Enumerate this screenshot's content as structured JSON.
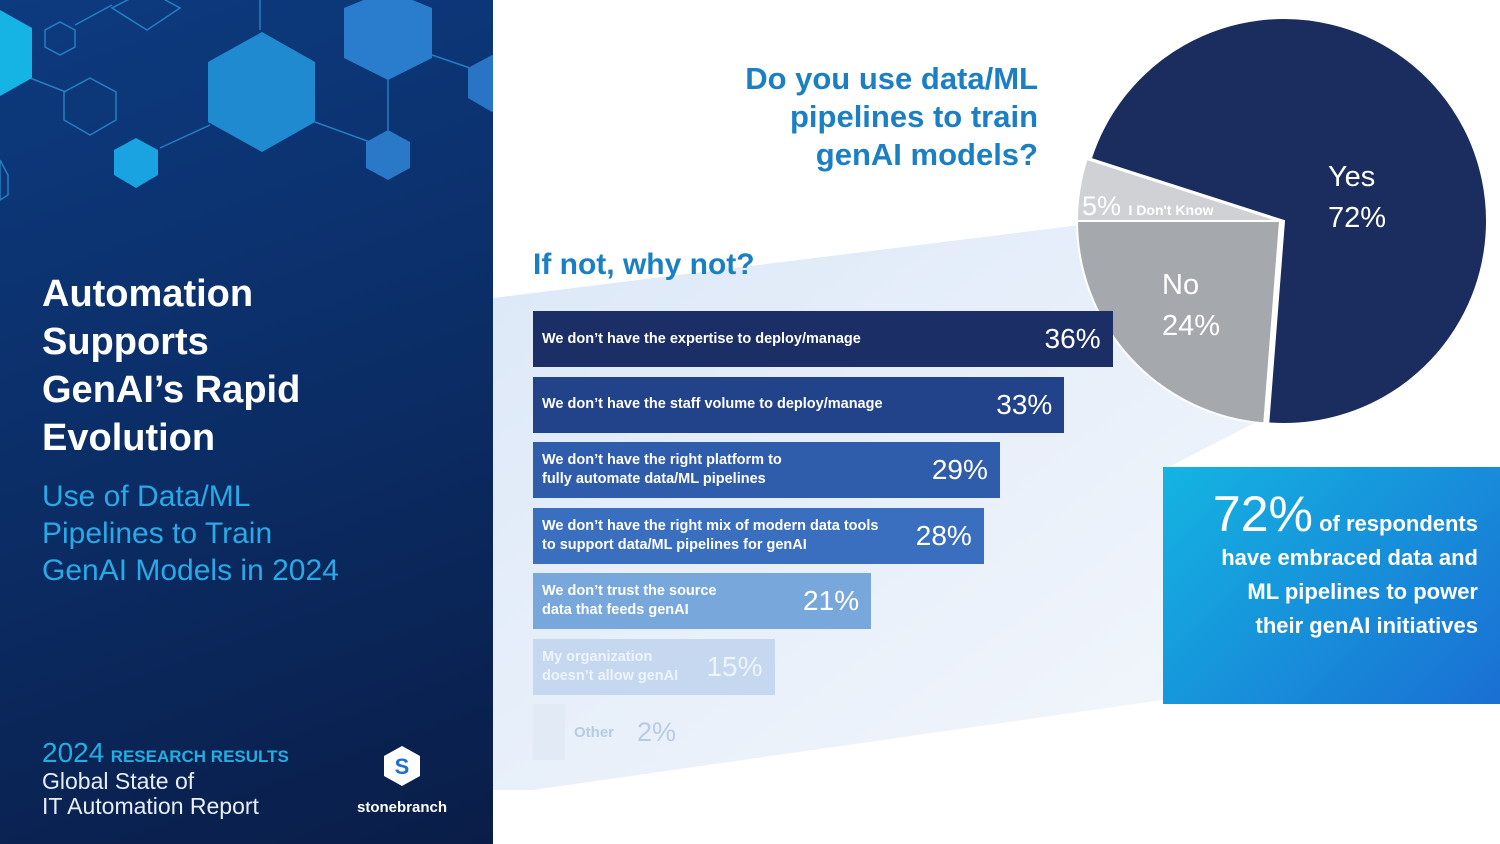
{
  "left_panel": {
    "title_lines": [
      "Automation",
      "Supports",
      "GenAI’s Rapid",
      "Evolution"
    ],
    "subtitle_lines": [
      "Use of Data/ML",
      "Pipelines to Train",
      "GenAI Models in 2024"
    ],
    "report_year": "2024",
    "report_tag": "RESEARCH RESULTS",
    "report_lines": [
      "Global State of",
      "IT Automation Report"
    ],
    "brand": "stonebranch",
    "logo_letter": "S"
  },
  "pie_question_lines": [
    "Do you use data/ML",
    "pipelines to train",
    "genAI models?"
  ],
  "bars_title": "If not, why not?",
  "callout": {
    "big": "72%",
    "rest_first": " of respondents",
    "lines": [
      "have embraced data and",
      "ML pipelines to power",
      "their genAI initiatives"
    ]
  },
  "colors": {
    "bars": [
      "#1b2f66",
      "#22428a",
      "#2f5cab",
      "#3a6ebf",
      "#78a7dc",
      "#c5d8f0",
      "#e2eaf6"
    ],
    "yes": "#1b2d5e",
    "no": "#a5a8ad",
    "dk": "#cfd1d4"
  },
  "chart_data": [
    {
      "type": "pie",
      "title": "Do you use data/ML pipelines to train genAI models?",
      "slices": [
        {
          "label": "Yes",
          "value": 72,
          "text": "72%"
        },
        {
          "label": "No",
          "value": 24,
          "text": "24%"
        },
        {
          "label": "I Don't Know",
          "value": 5,
          "text": "5%"
        }
      ]
    },
    {
      "type": "bar",
      "title": "If not, why not?",
      "categories": [
        [
          "We don’t have the expertise to deploy/manage"
        ],
        [
          "We don’t have the staff volume to deploy/manage"
        ],
        [
          "We don’t have the right platform to",
          "fully automate data/ML pipelines"
        ],
        [
          "We don’t have the right mix of modern data tools",
          "to support data/ML pipelines for genAI"
        ],
        [
          "We don’t trust the source",
          "data that feeds genAI"
        ],
        [
          "My organization",
          "doesn’t allow genAI"
        ],
        [
          "Other"
        ]
      ],
      "values": [
        36,
        33,
        29,
        28,
        21,
        15,
        2
      ],
      "labels": [
        "36%",
        "33%",
        "29%",
        "28%",
        "21%",
        "15%",
        "2%"
      ]
    }
  ]
}
